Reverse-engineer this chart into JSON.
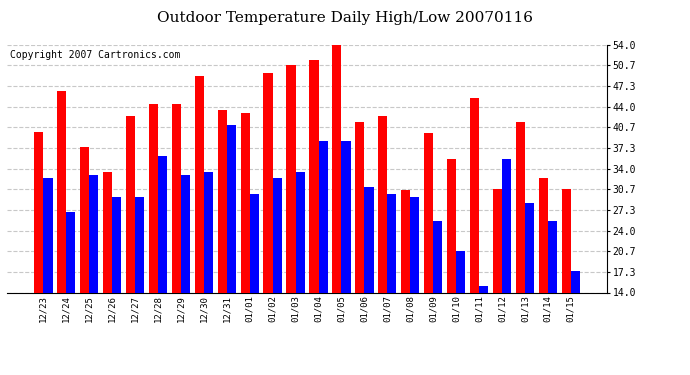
{
  "title": "Outdoor Temperature Daily High/Low 20070116",
  "copyright": "Copyright 2007 Cartronics.com",
  "dates": [
    "12/23",
    "12/24",
    "12/25",
    "12/26",
    "12/27",
    "12/28",
    "12/29",
    "12/30",
    "12/31",
    "01/01",
    "01/02",
    "01/03",
    "01/04",
    "01/05",
    "01/06",
    "01/07",
    "01/08",
    "01/09",
    "01/10",
    "01/11",
    "01/12",
    "01/13",
    "01/14",
    "01/15"
  ],
  "highs": [
    40.0,
    46.5,
    37.5,
    33.5,
    42.5,
    44.5,
    44.5,
    49.0,
    43.5,
    43.0,
    49.5,
    50.7,
    51.5,
    54.0,
    41.5,
    42.5,
    30.5,
    39.7,
    35.5,
    45.5,
    30.7,
    41.5,
    32.5,
    30.7
  ],
  "lows": [
    32.5,
    27.0,
    33.0,
    29.5,
    29.5,
    36.0,
    33.0,
    33.5,
    41.0,
    30.0,
    32.5,
    33.5,
    38.5,
    38.5,
    31.0,
    30.0,
    29.5,
    25.5,
    20.7,
    15.0,
    35.5,
    28.5,
    25.5,
    17.5
  ],
  "high_color": "#ff0000",
  "low_color": "#0000ff",
  "background_color": "#ffffff",
  "plot_bg_color": "#ffffff",
  "grid_color": "#c8c8c8",
  "ylim_min": 14.0,
  "ylim_max": 54.0,
  "yticks": [
    14.0,
    17.3,
    20.7,
    24.0,
    27.3,
    30.7,
    34.0,
    37.3,
    40.7,
    44.0,
    47.3,
    50.7,
    54.0
  ],
  "title_fontsize": 11,
  "copyright_fontsize": 7,
  "bar_width": 0.4
}
